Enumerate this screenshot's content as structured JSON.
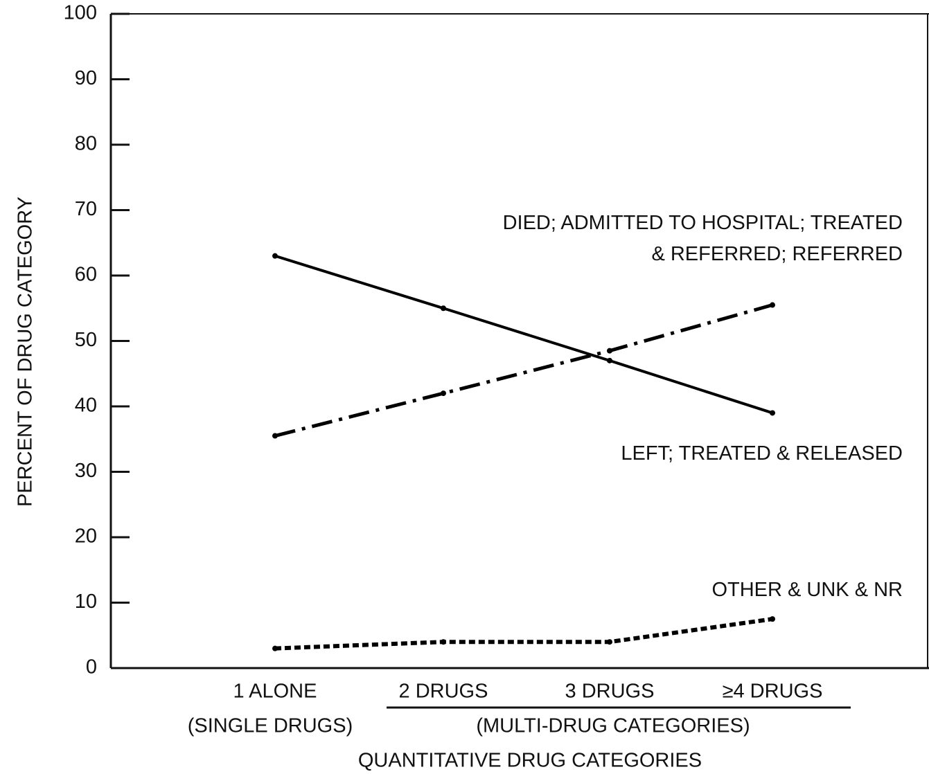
{
  "chart_data": {
    "type": "line",
    "xlabel": "QUANTITATIVE DRUG CATEGORIES",
    "ylabel": "PERCENT OF DRUG CATEGORY",
    "categories": [
      "1 ALONE",
      "2 DRUGS",
      "3 DRUGS",
      "≥4 DRUGS"
    ],
    "category_groups": [
      "(SINGLE DRUGS)",
      "(MULTI-DRUG CATEGORIES)"
    ],
    "series": [
      {
        "name": "LEFT; TREATED & RELEASED",
        "color": "#000000",
        "values": [
          63,
          55,
          47,
          39
        ]
      },
      {
        "name": "DIED; ADMITTED TO HOSPITAL; TREATED & REFERRED; REFERRED",
        "color": "#000000",
        "values": [
          35.5,
          42,
          48.5,
          55.5
        ]
      },
      {
        "name": "OTHER & UNK & NR",
        "color": "#000000",
        "values": [
          3,
          4,
          4,
          7.5
        ]
      }
    ],
    "ylim": [
      0,
      100
    ],
    "yticks": [
      0,
      10,
      20,
      30,
      40,
      50,
      60,
      70,
      80,
      90,
      100
    ]
  }
}
